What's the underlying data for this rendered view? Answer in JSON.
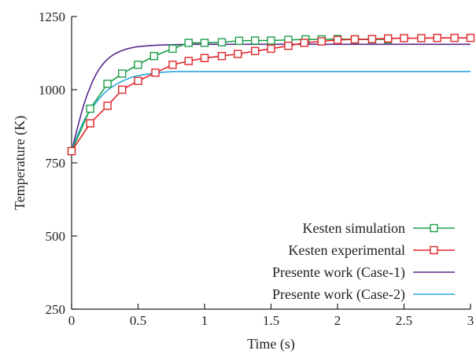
{
  "chart_data": {
    "type": "line",
    "title": "",
    "xlabel": "Time (s)",
    "ylabel": "Temperature (K)",
    "xlim": [
      0,
      3
    ],
    "ylim": [
      250,
      1250
    ],
    "x_ticks": [
      0,
      0.5,
      1,
      1.5,
      2,
      2.5,
      3
    ],
    "x_tick_labels": [
      "0",
      "0.5",
      "1",
      "1.5",
      "2",
      "2.5",
      "3"
    ],
    "y_ticks": [
      250,
      500,
      750,
      1000,
      1250
    ],
    "y_tick_labels": [
      "250",
      "500",
      "750",
      "1000",
      "1250"
    ],
    "grid": false,
    "legend_position": "bottom-right",
    "series": [
      {
        "name": "Kesten simulation",
        "color": "#1e9e4a",
        "marker": "square",
        "x": [
          0,
          0.14,
          0.27,
          0.38,
          0.5,
          0.62,
          0.76,
          0.88,
          1.0,
          1.13,
          1.26,
          1.38,
          1.5,
          1.63,
          1.76,
          1.88,
          2.0,
          2.13,
          2.26,
          2.38
        ],
        "y": [
          790,
          935,
          1020,
          1055,
          1085,
          1115,
          1140,
          1160,
          1160,
          1162,
          1167,
          1168,
          1168,
          1170,
          1172,
          1172,
          1173,
          1172,
          1172,
          1172
        ]
      },
      {
        "name": "Kesten experimental",
        "color": "#e0262b",
        "marker": "square",
        "x": [
          0,
          0.14,
          0.27,
          0.38,
          0.5,
          0.63,
          0.76,
          0.88,
          1.0,
          1.13,
          1.25,
          1.38,
          1.5,
          1.63,
          1.75,
          1.88,
          2.0,
          2.13,
          2.26,
          2.38,
          2.5,
          2.63,
          2.75,
          2.88,
          3.0
        ],
        "y": [
          790,
          885,
          945,
          1000,
          1030,
          1058,
          1085,
          1098,
          1108,
          1115,
          1122,
          1132,
          1140,
          1150,
          1160,
          1165,
          1170,
          1172,
          1173,
          1175,
          1176,
          1176,
          1177,
          1177,
          1177
        ]
      },
      {
        "name": "Presente work (Case-1)",
        "color": "#5b2a8c",
        "marker": "none",
        "x": [
          0,
          0.05,
          0.1,
          0.15,
          0.2,
          0.25,
          0.3,
          0.35,
          0.4,
          0.45,
          0.5,
          0.6,
          0.7,
          0.8,
          0.9,
          1.0,
          1.5,
          2.0,
          2.5,
          3.0
        ],
        "y": [
          790,
          880,
          960,
          1020,
          1065,
          1095,
          1115,
          1128,
          1137,
          1143,
          1147,
          1151,
          1153,
          1154,
          1155,
          1155,
          1155,
          1155,
          1155,
          1155
        ]
      },
      {
        "name": "Presente work (Case-2)",
        "color": "#29a8dc",
        "marker": "none",
        "x": [
          0,
          0.05,
          0.1,
          0.15,
          0.2,
          0.25,
          0.3,
          0.35,
          0.4,
          0.45,
          0.5,
          0.6,
          0.7,
          0.8,
          0.9,
          1.0,
          1.5,
          2.0,
          2.5,
          3.0
        ],
        "y": [
          790,
          850,
          900,
          935,
          965,
          990,
          1008,
          1022,
          1033,
          1042,
          1048,
          1055,
          1060,
          1062,
          1062,
          1062,
          1062,
          1062,
          1062,
          1062
        ]
      }
    ]
  }
}
